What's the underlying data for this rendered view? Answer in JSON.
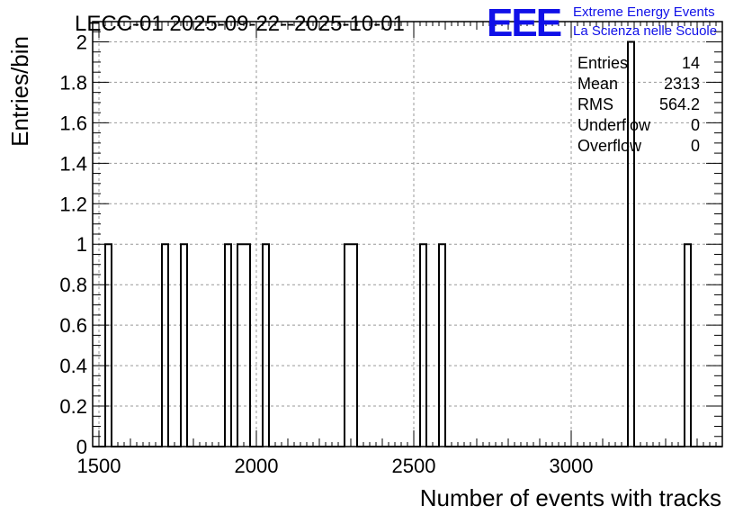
{
  "chart_data": {
    "type": "histogram",
    "title": "LECC-01 2025-09-22--2025-10-01",
    "xlabel": "Number of events with tracks",
    "ylabel": "Entries/bin",
    "xlim": [
      1480,
      3480
    ],
    "ylim": [
      0,
      2.1
    ],
    "bin_width": 20,
    "x_ticks": [
      1500,
      2000,
      2500,
      3000
    ],
    "y_ticks": [
      0,
      0.2,
      0.4,
      0.6,
      0.8,
      1,
      1.2,
      1.4,
      1.6,
      1.8,
      2
    ],
    "y_tick_labels": [
      "0",
      "0.2",
      "0.4",
      "0.6",
      "0.8",
      "1",
      "1.2",
      "1.4",
      "1.6",
      "1.8",
      "2"
    ],
    "grid": true,
    "bins": [
      {
        "x_low": 1520,
        "x_high": 1540,
        "count": 1
      },
      {
        "x_low": 1700,
        "x_high": 1720,
        "count": 1
      },
      {
        "x_low": 1760,
        "x_high": 1780,
        "count": 1
      },
      {
        "x_low": 1900,
        "x_high": 1920,
        "count": 1
      },
      {
        "x_low": 1940,
        "x_high": 1960,
        "count": 1
      },
      {
        "x_low": 1960,
        "x_high": 1980,
        "count": 1
      },
      {
        "x_low": 2020,
        "x_high": 2040,
        "count": 1
      },
      {
        "x_low": 2280,
        "x_high": 2300,
        "count": 1
      },
      {
        "x_low": 2300,
        "x_high": 2320,
        "count": 1
      },
      {
        "x_low": 2520,
        "x_high": 2540,
        "count": 1
      },
      {
        "x_low": 2580,
        "x_high": 2600,
        "count": 1
      },
      {
        "x_low": 3180,
        "x_high": 3200,
        "count": 2
      },
      {
        "x_low": 3360,
        "x_high": 3380,
        "count": 1
      }
    ],
    "stats": [
      {
        "label": "Entries",
        "value": "14"
      },
      {
        "label": "Mean",
        "value": "2313"
      },
      {
        "label": "RMS",
        "value": "564.2"
      },
      {
        "label": "Underflow",
        "value": "0"
      },
      {
        "label": "Overflow",
        "value": "0"
      }
    ]
  },
  "logo": {
    "mark": "EEE",
    "line1": "Extreme Energy Events",
    "line2": "La Scienza nelle Scuole",
    "color": "#1010e8"
  }
}
